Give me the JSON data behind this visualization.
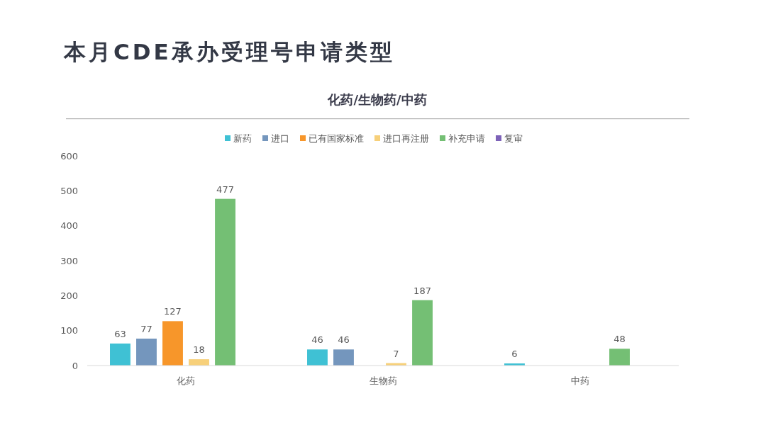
{
  "chart_data": {
    "type": "bar",
    "title": "本月CDE承办受理号申请类型",
    "subtitle": "化药/生物药/中药",
    "categories": [
      "化药",
      "生物药",
      "中药"
    ],
    "series": [
      {
        "name": "新药",
        "color": "#3fc1d4",
        "values": [
          63,
          46,
          6
        ]
      },
      {
        "name": "进口",
        "color": "#7496bd",
        "values": [
          77,
          46,
          null
        ]
      },
      {
        "name": "已有国家标准",
        "color": "#f7962a",
        "values": [
          127,
          null,
          null
        ]
      },
      {
        "name": "进口再注册",
        "color": "#f7d07a",
        "values": [
          18,
          7,
          null
        ]
      },
      {
        "name": "补充申请",
        "color": "#74bf74",
        "values": [
          477,
          187,
          48
        ]
      },
      {
        "name": "复审",
        "color": "#7d62b8",
        "values": [
          null,
          null,
          null
        ]
      }
    ],
    "ylim": [
      0,
      600
    ],
    "yticks": [
      0,
      100,
      200,
      300,
      400,
      500,
      600
    ],
    "legend": "top",
    "data_labels": true
  }
}
